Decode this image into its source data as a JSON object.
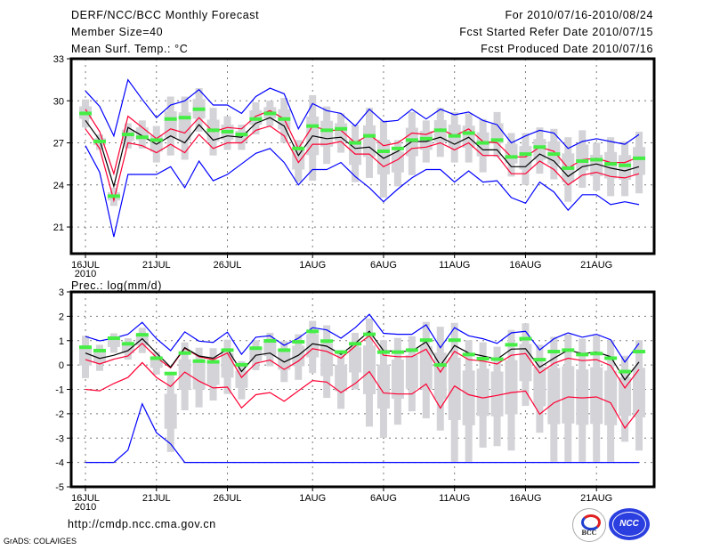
{
  "header": {
    "title": "DERF/NCC/BCC Monthly Forecast",
    "member_size": "Member Size=40",
    "variable": "Mean Surf. Temp.: °C",
    "period": "For 2010/07/16-2010/08/24",
    "started": "Fcst Started Refer Date 2010/07/15",
    "produced": "Fcst Produced Date 2010/07/16"
  },
  "footer": {
    "url": "http://cmdp.ncc.cma.gov.cn",
    "credit": "GrADS: COLA/IGES",
    "logo_bcc": "BCC",
    "logo_ncc": "NCC"
  },
  "colors": {
    "max_min": "#0000ff",
    "spread": "#ff0033",
    "mean": "#000000",
    "marker": "#44ee44",
    "box": "#d3d3d8"
  },
  "chart_data": [
    {
      "type": "line",
      "title": "Mean Surf. Temp.: °C",
      "ylim": [
        19.1,
        33
      ],
      "yticks": [
        21,
        24,
        27,
        30,
        33
      ],
      "x_days": 40,
      "xticks": [
        {
          "day": 0,
          "label": "16JUL"
        },
        {
          "day": 5,
          "label": "21JUL"
        },
        {
          "day": 10,
          "label": "26JUL"
        },
        {
          "day": 16,
          "label": "1AUG"
        },
        {
          "day": 21,
          "label": "6AUG"
        },
        {
          "day": 26,
          "label": "11AUG"
        },
        {
          "day": 31,
          "label": "16AUG"
        },
        {
          "day": 36,
          "label": "21AUG"
        }
      ],
      "year_label": "2010",
      "grid": true,
      "series": [
        {
          "name": "max",
          "values": [
            30.7,
            29.6,
            27.5,
            31.5,
            30.1,
            28.8,
            29.7,
            30.0,
            30.8,
            29.7,
            29.7,
            29.1,
            30.3,
            30.9,
            30.5,
            28.0,
            29.8,
            29.3,
            29.1,
            28.2,
            29.4,
            28.5,
            28.6,
            29.4,
            28.7,
            29.4,
            29.0,
            29.2,
            28.6,
            28.3,
            27.0,
            27.5,
            27.9,
            27.7,
            26.6,
            27.1,
            27.3,
            27.1,
            26.9,
            27.6
          ]
        },
        {
          "name": "min",
          "values": [
            26.8,
            24.9,
            20.3,
            24.75,
            24.75,
            24.75,
            25.3,
            23.8,
            25.7,
            24.3,
            24.75,
            25.5,
            26.25,
            26.6,
            25.6,
            24.0,
            25.1,
            25.1,
            25.6,
            24.6,
            23.8,
            22.8,
            23.7,
            24.5,
            25.1,
            25.1,
            24.2,
            25.0,
            24.2,
            24.3,
            23.1,
            22.7,
            24.2,
            23.5,
            22.2,
            23.3,
            23.3,
            22.6,
            22.8,
            22.6
          ]
        },
        {
          "name": "upper",
          "values": [
            29.4,
            27.8,
            24.8,
            28.9,
            28.1,
            27.3,
            28.0,
            27.7,
            28.8,
            27.8,
            28.1,
            28.0,
            28.9,
            29.3,
            28.7,
            26.6,
            28.2,
            27.9,
            27.9,
            27.0,
            27.6,
            26.8,
            27.0,
            27.7,
            27.6,
            28.0,
            27.5,
            28.0,
            27.1,
            27.0,
            26.0,
            26.0,
            26.7,
            26.4,
            25.2,
            25.8,
            25.9,
            25.6,
            25.6,
            26.0
          ]
        },
        {
          "name": "lower",
          "values": [
            28.0,
            26.6,
            22.9,
            27.0,
            26.8,
            26.3,
            26.9,
            26.3,
            27.6,
            26.6,
            27.0,
            27.0,
            27.9,
            28.2,
            27.5,
            25.6,
            26.9,
            26.9,
            27.1,
            26.2,
            26.2,
            25.3,
            25.8,
            26.6,
            26.7,
            27.0,
            26.5,
            27.0,
            26.1,
            26.1,
            24.8,
            24.8,
            25.7,
            25.1,
            24.0,
            24.7,
            24.9,
            24.6,
            24.5,
            24.8
          ]
        },
        {
          "name": "mean",
          "values": [
            28.6,
            27.2,
            23.9,
            28.1,
            27.5,
            26.9,
            27.5,
            27.0,
            28.3,
            27.2,
            27.5,
            27.4,
            28.4,
            28.8,
            28.2,
            26.1,
            27.5,
            27.3,
            27.4,
            26.6,
            26.7,
            25.9,
            26.4,
            27.1,
            27.1,
            27.4,
            26.9,
            27.4,
            26.5,
            26.5,
            25.3,
            25.3,
            26.2,
            25.7,
            24.6,
            25.3,
            25.5,
            25.2,
            25.0,
            25.3
          ]
        },
        {
          "name": "marker",
          "values": [
            29.1,
            27.1,
            23.2,
            27.6,
            27.4,
            27.2,
            28.7,
            28.8,
            29.4,
            27.9,
            27.8,
            27.6,
            28.7,
            29.1,
            28.7,
            26.6,
            28.2,
            27.9,
            28.0,
            27.0,
            27.5,
            26.4,
            26.6,
            27.2,
            27.3,
            27.9,
            27.5,
            27.7,
            27.0,
            27.2,
            26.0,
            26.2,
            26.7,
            26.2,
            25.2,
            25.7,
            25.8,
            25.5,
            25.4,
            25.9
          ]
        },
        {
          "name": "box_high",
          "values": [
            30.1,
            27.6,
            23.8,
            28.4,
            28.6,
            28.2,
            30.3,
            30.3,
            30.9,
            29.5,
            28.9,
            28.3,
            29.9,
            30.0,
            30.2,
            27.2,
            30.4,
            29.6,
            29.1,
            28.3,
            29.5,
            28.6,
            27.2,
            29.2,
            28.6,
            29.5,
            29.2,
            29.1,
            28.7,
            29.2,
            27.7,
            27.7,
            28.1,
            28.0,
            27.4,
            27.9,
            27.0,
            27.4,
            27.1,
            27.8
          ]
        },
        {
          "name": "box_low",
          "values": [
            28.1,
            26.5,
            22.5,
            26.6,
            26.6,
            25.6,
            26.1,
            25.8,
            27.8,
            26.1,
            26.5,
            26.5,
            27.6,
            28.2,
            27.0,
            24.2,
            24.3,
            25.5,
            26.3,
            24.2,
            24.5,
            23.1,
            23.9,
            24.7,
            25.6,
            26.0,
            25.6,
            25.6,
            24.9,
            26.0,
            24.6,
            24.0,
            24.8,
            24.4,
            22.8,
            23.8,
            23.6,
            23.2,
            23.2,
            23.4
          ]
        }
      ]
    },
    {
      "type": "line",
      "title": "Prec.: log(mm/d)",
      "ylim": [
        -5,
        3
      ],
      "yticks": [
        -5,
        -4,
        -3,
        -2,
        -1,
        0,
        1,
        2,
        3
      ],
      "x_days": 40,
      "xticks": [
        {
          "day": 0,
          "label": "16JUL"
        },
        {
          "day": 5,
          "label": "21JUL"
        },
        {
          "day": 10,
          "label": "26JUL"
        },
        {
          "day": 16,
          "label": "1AUG"
        },
        {
          "day": 21,
          "label": "6AUG"
        },
        {
          "day": 26,
          "label": "11AUG"
        },
        {
          "day": 31,
          "label": "16AUG"
        },
        {
          "day": 36,
          "label": "21AUG"
        }
      ],
      "year_label": "2010",
      "grid": true,
      "series": [
        {
          "name": "max",
          "values": [
            1.17,
            0.99,
            1.1,
            1.26,
            1.75,
            1.08,
            0.59,
            1.36,
            0.98,
            0.93,
            1.35,
            0.44,
            1.14,
            1.2,
            0.81,
            1.1,
            1.53,
            1.44,
            1.1,
            1.53,
            2.08,
            1.3,
            1.26,
            1.26,
            1.65,
            0.71,
            1.53,
            1.2,
            1.08,
            0.89,
            1.32,
            1.38,
            0.62,
            1.08,
            1.32,
            1.14,
            1.26,
            1.04,
            0.12,
            0.89
          ]
        },
        {
          "name": "min",
          "values": [
            -4,
            -4,
            -4,
            -3.49,
            -1.59,
            -2.78,
            -3.24,
            -4,
            -4,
            -4,
            -4,
            -4,
            -4,
            -4,
            -4,
            -4,
            -4,
            -4,
            -4,
            -4,
            -4,
            -4,
            -4,
            -4,
            -4,
            -4,
            -4,
            -4,
            -4,
            -4,
            -4,
            -4,
            -4,
            -4,
            -4,
            -4,
            -4,
            -4,
            -4,
            -4
          ]
        },
        {
          "name": "upper",
          "values": [
            0.22,
            0.04,
            0.24,
            0.37,
            0.89,
            0.31,
            -0.12,
            0.69,
            0.34,
            0.22,
            0.49,
            -0.51,
            0.07,
            0.2,
            -0.18,
            0.16,
            0.67,
            0.56,
            0.28,
            0.77,
            1.2,
            0.4,
            0.34,
            0.34,
            0.65,
            -0.29,
            0.56,
            0.22,
            0.16,
            0.04,
            0.4,
            0.47,
            -0.33,
            0.07,
            0.28,
            0.18,
            0.22,
            -0.02,
            -0.94,
            -0.18
          ]
        },
        {
          "name": "lower",
          "values": [
            -1.0,
            -1.06,
            -0.76,
            -0.51,
            0.1,
            -0.51,
            -0.88,
            -0.29,
            -0.66,
            -0.94,
            -0.91,
            -1.76,
            -1.22,
            -1.13,
            -1.49,
            -1.06,
            -0.64,
            -0.7,
            -1.13,
            -0.76,
            -0.27,
            -1.15,
            -1.19,
            -1.19,
            -0.78,
            -1.77,
            -0.86,
            -1.22,
            -1.35,
            -1.25,
            -1.13,
            -1.07,
            -2.02,
            -1.55,
            -1.31,
            -1.35,
            -1.31,
            -1.55,
            -2.59,
            -1.84
          ]
        },
        {
          "name": "mean",
          "values": [
            0.49,
            0.27,
            0.4,
            0.59,
            1.08,
            0.49,
            -0.09,
            0.71,
            0.37,
            0.28,
            0.65,
            -0.27,
            0.4,
            0.49,
            0.12,
            0.4,
            0.87,
            0.77,
            0.44,
            0.89,
            1.38,
            0.59,
            0.56,
            0.56,
            0.95,
            -0.02,
            0.8,
            0.49,
            0.37,
            0.24,
            0.65,
            0.67,
            -0.09,
            0.28,
            0.61,
            0.47,
            0.53,
            0.34,
            -0.61,
            0.12
          ]
        },
        {
          "name": "marker",
          "values": [
            0.73,
            0.59,
            1.1,
            0.87,
            1.24,
            0.28,
            -0.35,
            0.49,
            0.16,
            0.13,
            0.61,
            0.01,
            0.69,
            0.99,
            0.61,
            0.95,
            1.38,
            0.98,
            0.53,
            0.87,
            1.26,
            0.53,
            0.53,
            0.61,
            1.02,
            0.0,
            1.02,
            0.43,
            0.26,
            0.24,
            0.83,
            1.08,
            0.22,
            0.55,
            0.61,
            0.43,
            0.47,
            0.28,
            -0.27,
            0.55
          ]
        },
        {
          "name": "box_high",
          "values": [
            1.2,
            0.83,
            1.3,
            1.1,
            1.53,
            0.53,
            -0.39,
            0.93,
            0.71,
            0.69,
            1.04,
            0.16,
            1.02,
            1.32,
            0.98,
            1.26,
            1.81,
            1.63,
            0.61,
            1.32,
            1.91,
            1.02,
            1.11,
            1.18,
            1.77,
            1.57,
            1.73,
            1.02,
            0.93,
            0.75,
            1.44,
            1.71,
            0.83,
            1.16,
            1.26,
            1.08,
            1.2,
            1.02,
            0.38,
            1.02
          ]
        },
        {
          "name": "box_low",
          "values": [
            -0.54,
            -0.24,
            0.5,
            0.22,
            0.49,
            -0.39,
            -3.57,
            -1.86,
            -1.74,
            -1.46,
            -1.19,
            -1.41,
            -0.21,
            -0.05,
            -0.7,
            -0.61,
            -0.33,
            -1.35,
            -1.8,
            -1.0,
            -2.53,
            -2.99,
            -2.45,
            -1.9,
            -2.19,
            -2.69,
            -3.97,
            -3.97,
            -3.39,
            -3.33,
            -3.51,
            -1.68,
            -2.78,
            -3.97,
            -3.97,
            -3.97,
            -3.97,
            -3.97,
            -3.15,
            -3.51
          ]
        }
      ]
    }
  ]
}
